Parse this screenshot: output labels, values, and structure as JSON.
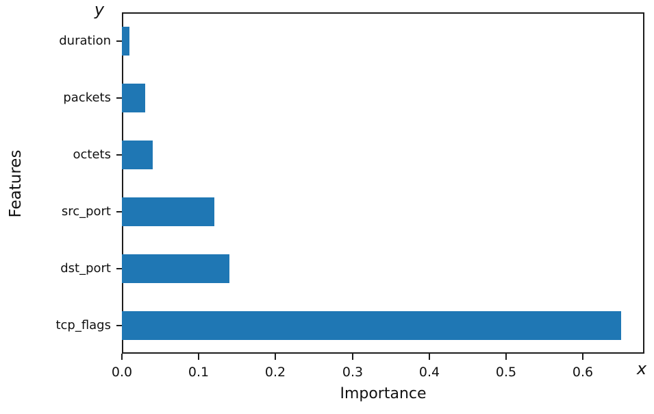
{
  "figure": {
    "background": "#ffffff",
    "axis_color": "#1c1c1c",
    "text_color": "#111111"
  },
  "chart_data": {
    "type": "bar",
    "orientation": "horizontal",
    "title": "",
    "xlabel": "Importance",
    "ylabel": "Features",
    "x_axis_corner_label": "x",
    "y_axis_corner_label": "y",
    "categories": [
      "duration",
      "packets",
      "octets",
      "src_port",
      "dst_port",
      "tcp_flags"
    ],
    "values": [
      0.01,
      0.03,
      0.04,
      0.12,
      0.14,
      0.65
    ],
    "x_ticks": [
      0.0,
      0.1,
      0.2,
      0.3,
      0.4,
      0.5,
      0.6
    ],
    "x_tick_labels": [
      "0.0",
      "0.1",
      "0.2",
      "0.3",
      "0.4",
      "0.5",
      "0.6"
    ],
    "xlim": [
      0,
      0.68
    ],
    "bar_color": "#1f77b4",
    "bar_height_ratio": 0.5,
    "grid": false,
    "legend_position": "none"
  }
}
